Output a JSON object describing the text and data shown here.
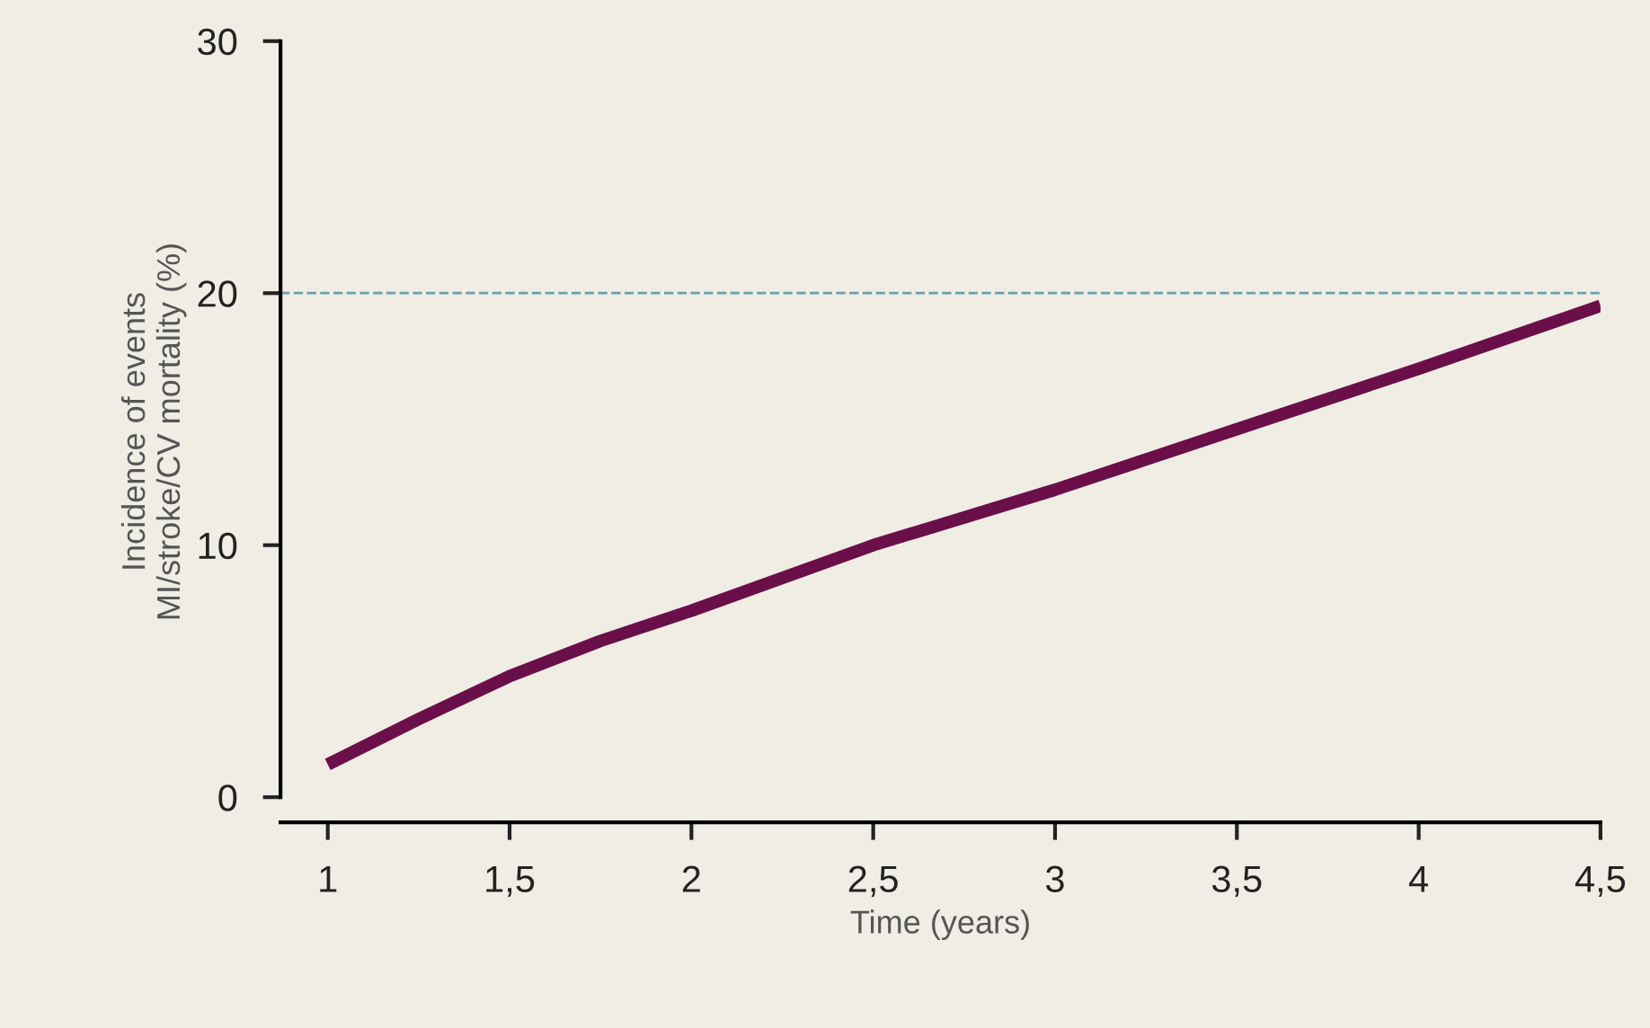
{
  "chart_data": {
    "type": "line",
    "xlabel": "Time (years)",
    "ylabel": "Incidence of events\nMI/stroke/CV mortality (%)",
    "x": [
      1,
      1.25,
      1.5,
      1.75,
      2,
      2.5,
      3,
      3.5,
      4,
      4.5
    ],
    "series": [
      {
        "color": "#6b0f4a",
        "values": [
          1.3,
          3.1,
          4.8,
          6.2,
          7.4,
          10,
          12.2,
          14.6,
          17,
          19.5
        ]
      }
    ],
    "xlim": [
      0.87,
      4.5
    ],
    "ylim": [
      -1,
      30
    ],
    "xticks": [
      1,
      {
        "value": 1.5,
        "label": "1,5"
      },
      2,
      {
        "value": 2.5,
        "label": "2,5"
      },
      3,
      {
        "value": 3.5,
        "label": "3,5"
      },
      4,
      {
        "value": 4.5,
        "label": "4,5"
      }
    ],
    "yticks": [
      0,
      10,
      20,
      30
    ],
    "ref_lines": [
      {
        "axis": "y",
        "value": 20,
        "label": null,
        "color": "#6a9fb0",
        "line_style": "dashed"
      }
    ],
    "grid": false,
    "legend": false,
    "marker": "none",
    "line_style": "solid"
  }
}
